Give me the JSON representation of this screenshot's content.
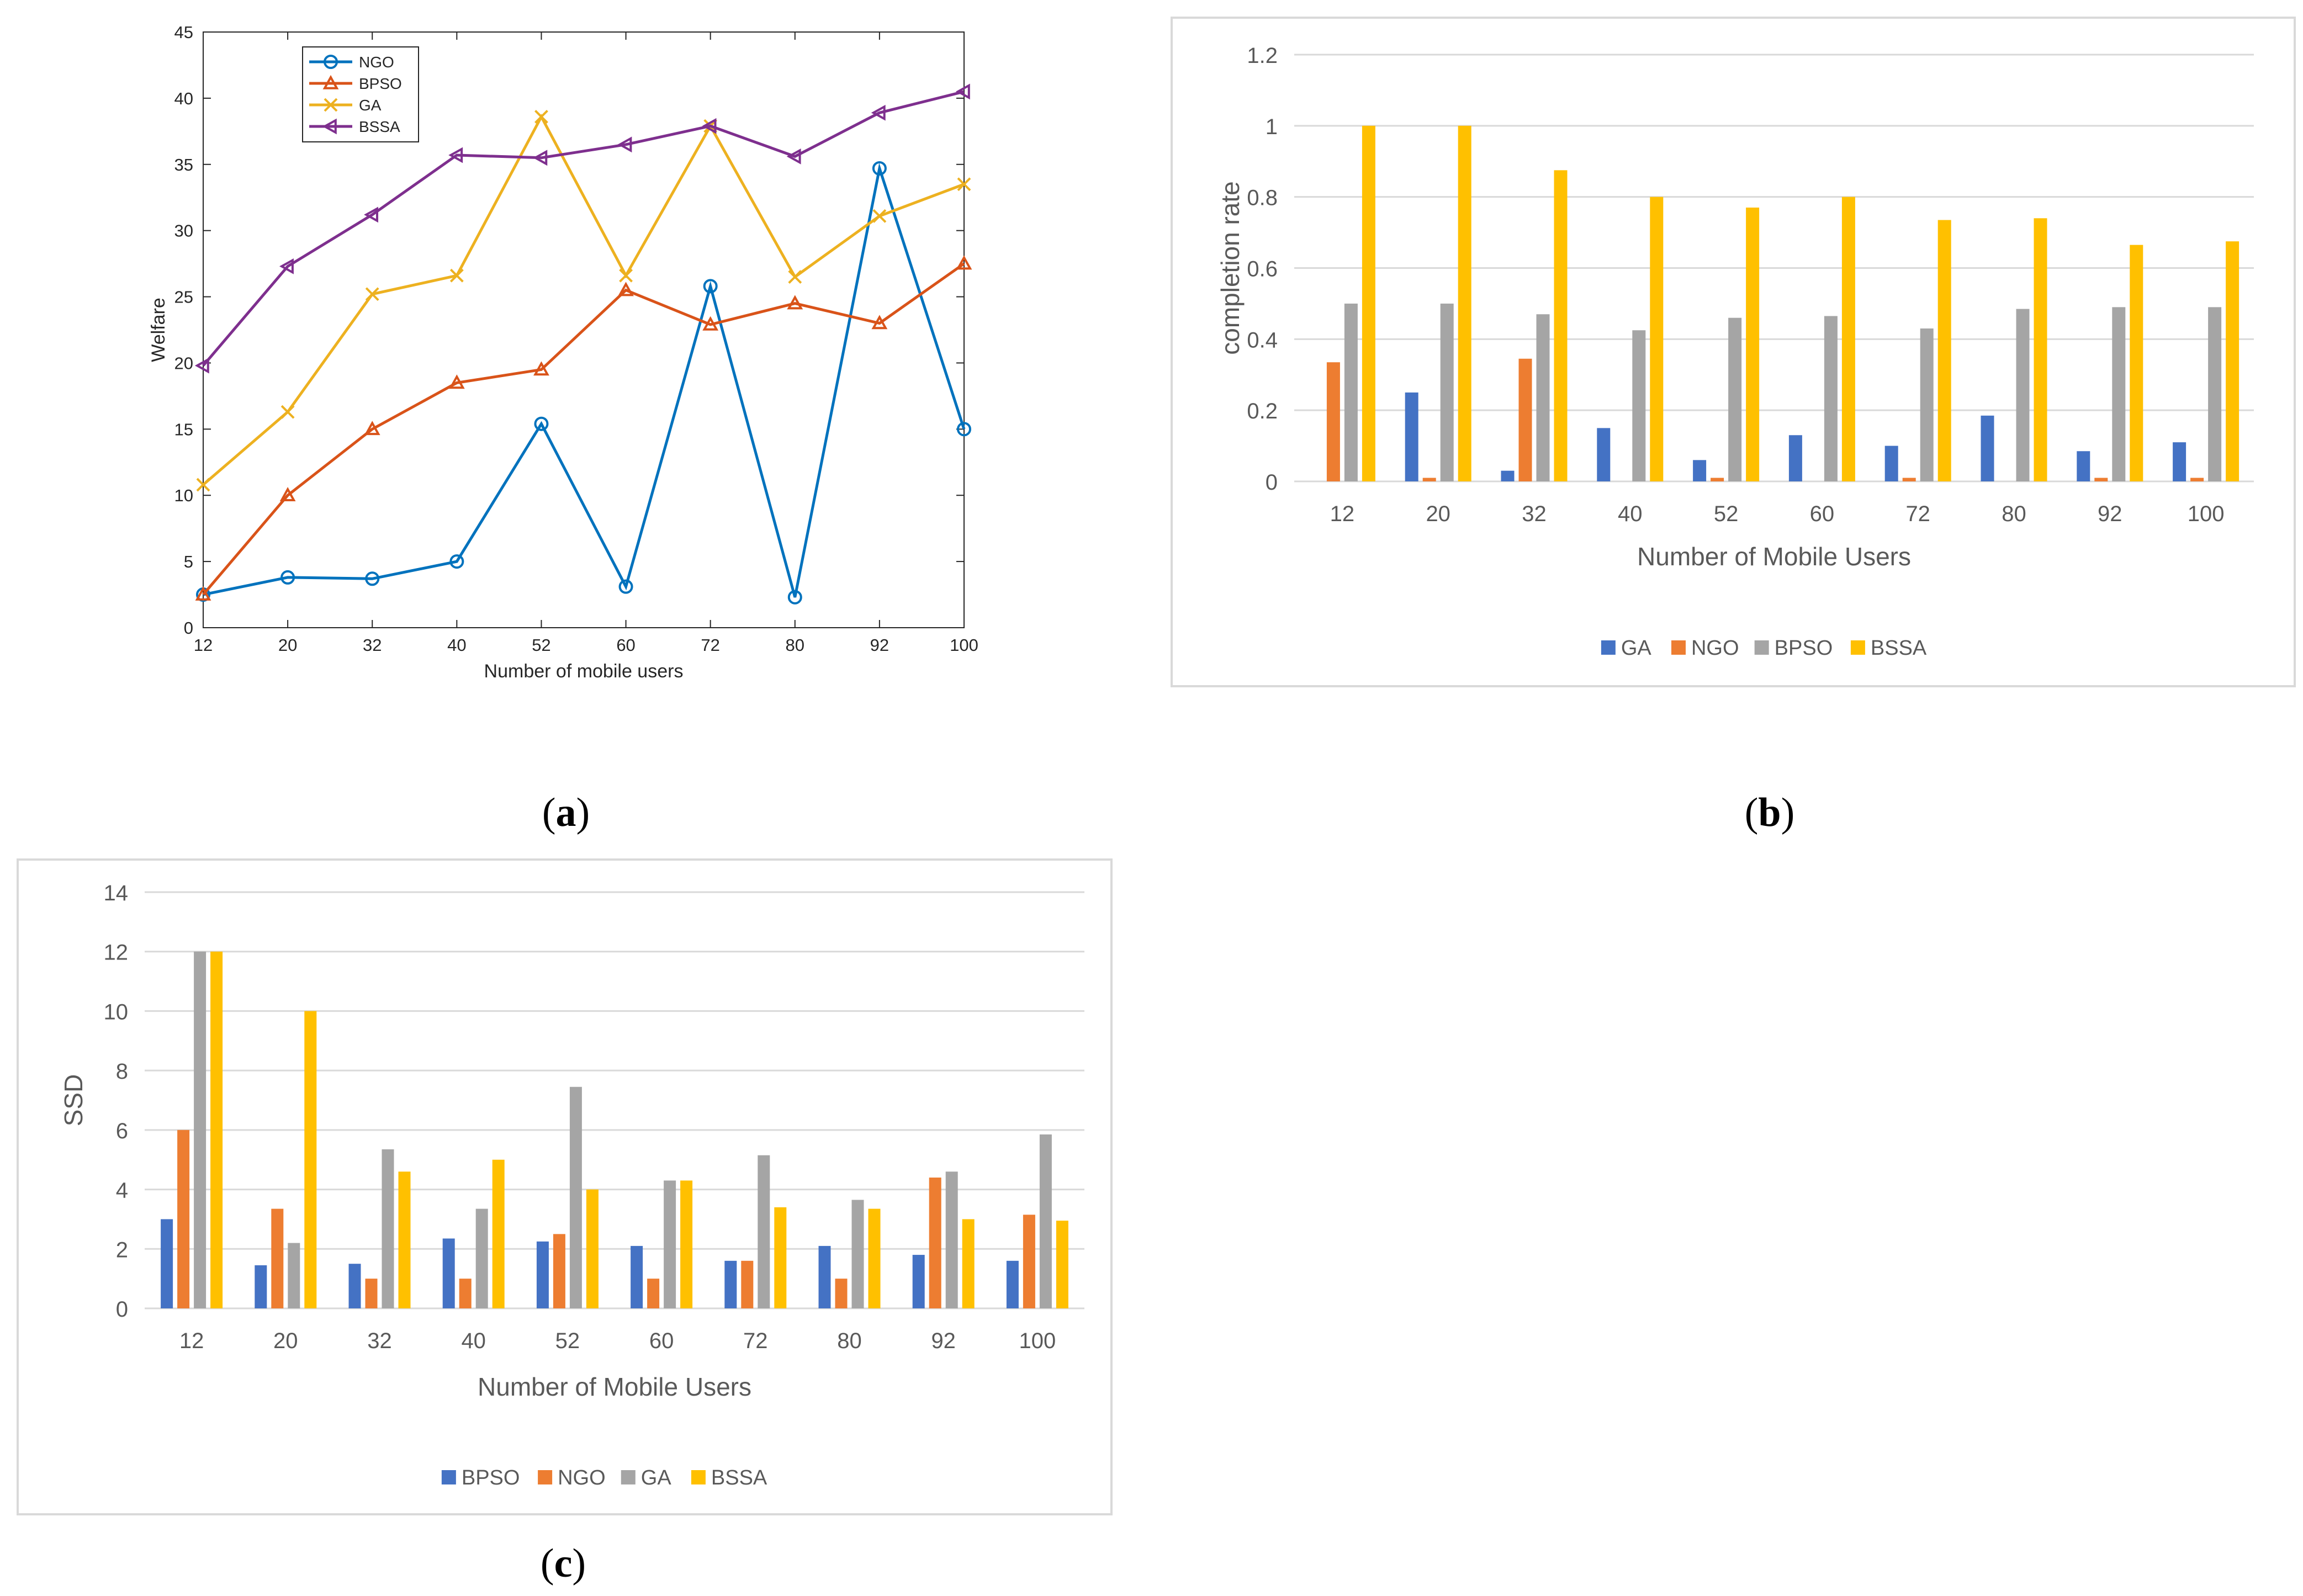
{
  "captions": {
    "a": "a",
    "b": "b",
    "c": "c"
  },
  "chart_data": [
    {
      "id": "a",
      "type": "line",
      "title": "",
      "xlabel": "Number of mobile users",
      "ylabel": "Welfare",
      "categories": [
        "12",
        "20",
        "32",
        "40",
        "52",
        "60",
        "72",
        "80",
        "92",
        "100"
      ],
      "ylim": [
        0,
        45
      ],
      "yticks": [
        0,
        5,
        10,
        15,
        20,
        25,
        30,
        35,
        40,
        45
      ],
      "grid": false,
      "legend_position": "top-left",
      "series": [
        {
          "name": "NGO",
          "color": "#0072BD",
          "marker": "circle",
          "values": [
            2.5,
            3.8,
            3.7,
            5.0,
            15.4,
            3.1,
            25.8,
            2.3,
            34.7,
            15.0
          ]
        },
        {
          "name": "BPSO",
          "color": "#D95319",
          "marker": "triangle",
          "values": [
            2.5,
            10.0,
            15.0,
            18.5,
            19.5,
            25.5,
            22.9,
            24.5,
            23.0,
            27.5
          ]
        },
        {
          "name": "GA",
          "color": "#EDB120",
          "marker": "x",
          "values": [
            10.8,
            16.3,
            25.2,
            26.6,
            38.6,
            26.6,
            37.9,
            26.5,
            31.1,
            33.5
          ]
        },
        {
          "name": "BSSA",
          "color": "#7E2F8E",
          "marker": "triangle-left",
          "values": [
            19.8,
            27.3,
            31.2,
            35.7,
            35.5,
            36.5,
            37.9,
            35.6,
            38.9,
            40.5
          ]
        }
      ]
    },
    {
      "id": "b",
      "type": "bar",
      "title": "",
      "xlabel": "Number of Mobile Users",
      "ylabel": "completion rate",
      "categories": [
        "12",
        "20",
        "32",
        "40",
        "52",
        "60",
        "72",
        "80",
        "92",
        "100"
      ],
      "ylim": [
        0,
        1.2
      ],
      "yticks": [
        "0",
        "0.2",
        "0.4",
        "0.6",
        "0.8",
        "1",
        "1.2"
      ],
      "grid": true,
      "legend_position": "bottom",
      "series": [
        {
          "name": "GA",
          "color": "#4472C4",
          "values": [
            0,
            0.25,
            0.03,
            0.15,
            0.06,
            0.13,
            0.1,
            0.185,
            0.085,
            0.11
          ]
        },
        {
          "name": "NGO",
          "color": "#ED7D31",
          "values": [
            0.335,
            0.01,
            0.345,
            0,
            0.01,
            0,
            0.01,
            0,
            0.01,
            0.01
          ]
        },
        {
          "name": "BPSO",
          "color": "#A5A5A5",
          "values": [
            0.5,
            0.5,
            0.47,
            0.425,
            0.46,
            0.465,
            0.43,
            0.485,
            0.49,
            0.49
          ]
        },
        {
          "name": "BSSA",
          "color": "#FFC000",
          "values": [
            1.0,
            1.0,
            0.875,
            0.8,
            0.77,
            0.8,
            0.735,
            0.74,
            0.665,
            0.675
          ]
        }
      ]
    },
    {
      "id": "c",
      "type": "bar",
      "title": "",
      "xlabel": "Number of Mobile Users",
      "ylabel": "SSD",
      "categories": [
        "12",
        "20",
        "32",
        "40",
        "52",
        "60",
        "72",
        "80",
        "92",
        "100"
      ],
      "ylim": [
        0,
        14
      ],
      "yticks": [
        "0",
        "2",
        "4",
        "6",
        "8",
        "10",
        "12",
        "14"
      ],
      "grid": true,
      "legend_position": "bottom",
      "series": [
        {
          "name": "BPSO",
          "color": "#4472C4",
          "values": [
            3.0,
            1.45,
            1.5,
            2.35,
            2.25,
            2.1,
            1.6,
            2.1,
            1.8,
            1.6
          ]
        },
        {
          "name": "NGO",
          "color": "#ED7D31",
          "values": [
            6.0,
            3.35,
            1.0,
            1.0,
            2.5,
            1.0,
            1.6,
            1.0,
            4.4,
            3.15
          ]
        },
        {
          "name": "GA",
          "color": "#A5A5A5",
          "values": [
            12.0,
            2.2,
            5.35,
            3.35,
            7.45,
            4.3,
            5.15,
            3.65,
            4.6,
            5.85
          ]
        },
        {
          "name": "BSSA",
          "color": "#FFC000",
          "values": [
            12.0,
            10.0,
            4.6,
            5.0,
            4.0,
            4.3,
            3.4,
            3.35,
            3.0,
            2.95
          ]
        }
      ]
    }
  ]
}
